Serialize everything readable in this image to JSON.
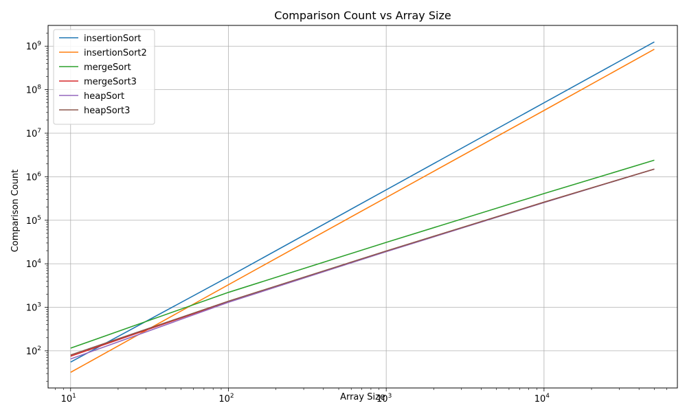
{
  "chart_data": {
    "type": "line",
    "title": "Comparison Count vs Array Size",
    "xlabel": "Array Size",
    "ylabel": "Comparison Count",
    "xscale": "log",
    "yscale": "log",
    "xlim": [
      7.2,
      70000
    ],
    "ylim": [
      14,
      3000000000
    ],
    "grid": true,
    "legend_position": "top-left",
    "xticks": [
      {
        "value": 10,
        "base": "10",
        "exp": "1"
      },
      {
        "value": 100,
        "base": "10",
        "exp": "2"
      },
      {
        "value": 1000,
        "base": "10",
        "exp": "3"
      },
      {
        "value": 10000,
        "base": "10",
        "exp": "4"
      }
    ],
    "yticks": [
      {
        "value": 100,
        "base": "10",
        "exp": "2"
      },
      {
        "value": 1000,
        "base": "10",
        "exp": "3"
      },
      {
        "value": 10000,
        "base": "10",
        "exp": "4"
      },
      {
        "value": 100000,
        "base": "10",
        "exp": "5"
      },
      {
        "value": 1000000,
        "base": "10",
        "exp": "6"
      },
      {
        "value": 10000000,
        "base": "10",
        "exp": "7"
      },
      {
        "value": 100000000,
        "base": "10",
        "exp": "8"
      },
      {
        "value": 1000000000,
        "base": "10",
        "exp": "9"
      }
    ],
    "x": [
      10,
      100,
      1000,
      10000,
      50000
    ],
    "series": [
      {
        "name": "insertionSort",
        "color": "#1f77b4",
        "values": [
          55,
          5000,
          500000,
          50000000,
          1250000000
        ]
      },
      {
        "name": "insertionSort2",
        "color": "#ff7f0e",
        "values": [
          32,
          3300,
          333000,
          33300000,
          850000000
        ]
      },
      {
        "name": "mergeSort",
        "color": "#2ca02c",
        "values": [
          115,
          2200,
          31000,
          410000,
          2400000
        ]
      },
      {
        "name": "mergeSort3",
        "color": "#d62728",
        "values": [
          75,
          1350,
          19500,
          260000,
          1500000
        ]
      },
      {
        "name": "heapSort",
        "color": "#9467bd",
        "values": [
          65,
          1300,
          19000,
          255000,
          1500000
        ]
      },
      {
        "name": "heapSort3",
        "color": "#8c564b",
        "values": [
          80,
          1380,
          19700,
          260000,
          1500000
        ]
      }
    ]
  }
}
